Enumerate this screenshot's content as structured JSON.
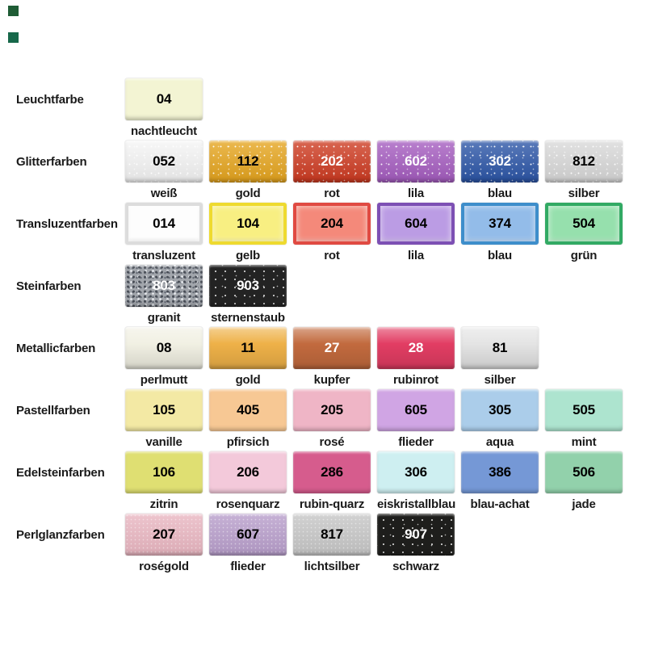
{
  "page": {
    "background": "#ffffff"
  },
  "corner_markers": [
    {
      "color": "#1f5c35"
    },
    {
      "color": "#17684a"
    }
  ],
  "rows": [
    {
      "category": "Leuchtfarbe",
      "swatches": [
        {
          "code": "04",
          "name": "nachtleucht",
          "bg": "#f3f4d3",
          "bg2": "#e2e3b6",
          "txt": "#000000",
          "fx": "solid"
        }
      ]
    },
    {
      "category": "Glitterfarben",
      "swatches": [
        {
          "code": "052",
          "name": "weiß",
          "bg": "#f5f5f5",
          "bg2": "#d9d9d9",
          "txt": "#000000",
          "fx": "glitter"
        },
        {
          "code": "112",
          "name": "gold",
          "bg": "#e6a51d",
          "bg2": "#c98a0e",
          "txt": "#000000",
          "fx": "glitter"
        },
        {
          "code": "202",
          "name": "rot",
          "bg": "#ce3a20",
          "bg2": "#ab2a14",
          "txt": "#ffffff",
          "fx": "glitter"
        },
        {
          "code": "602",
          "name": "lila",
          "bg": "#a55cc0",
          "bg2": "#8a44a6",
          "txt": "#ffffff",
          "fx": "glitter"
        },
        {
          "code": "302",
          "name": "blau",
          "bg": "#2b55a7",
          "bg2": "#1d3f8a",
          "txt": "#ffffff",
          "fx": "glitter"
        },
        {
          "code": "812",
          "name": "silber",
          "bg": "#d9d9d9",
          "bg2": "#bdbdbd",
          "txt": "#000000",
          "fx": "glitter"
        }
      ]
    },
    {
      "category": "Transluzentfarben",
      "swatches": [
        {
          "code": "014",
          "name": "transluzent",
          "bg": "#fdfdfd",
          "bg2": "#dcdcdc",
          "txt": "#000000",
          "fx": "translucent"
        },
        {
          "code": "104",
          "name": "gelb",
          "bg": "#f8ef82",
          "bg2": "#eeda2f",
          "txt": "#000000",
          "fx": "translucent"
        },
        {
          "code": "204",
          "name": "rot",
          "bg": "#f4897a",
          "bg2": "#e04a42",
          "txt": "#000000",
          "fx": "translucent"
        },
        {
          "code": "604",
          "name": "lila",
          "bg": "#bb9ce4",
          "bg2": "#7d50b4",
          "txt": "#000000",
          "fx": "translucent"
        },
        {
          "code": "374",
          "name": "blau",
          "bg": "#93bce9",
          "bg2": "#3e8ecb",
          "txt": "#000000",
          "fx": "translucent"
        },
        {
          "code": "504",
          "name": "grün",
          "bg": "#96e0ad",
          "bg2": "#32aa64",
          "txt": "#000000",
          "fx": "translucent"
        }
      ]
    },
    {
      "category": "Steinfarben",
      "swatches": [
        {
          "code": "803",
          "name": "granit",
          "bg": "#a2a6ac",
          "bg2": "#82868d",
          "txt": "#ffffff",
          "fx": "granite"
        },
        {
          "code": "903",
          "name": "sternenstaub",
          "bg": "#232323",
          "bg2": "#111111",
          "txt": "#ffffff",
          "fx": "stardust"
        }
      ]
    },
    {
      "category": "Metallicfarben",
      "swatches": [
        {
          "code": "08",
          "name": "perlmutt",
          "bg": "#f1f0e3",
          "bg2": "#dcdac6",
          "txt": "#000000",
          "fx": "metallic"
        },
        {
          "code": "11",
          "name": "gold",
          "bg": "#eeb148",
          "bg2": "#dd9722",
          "txt": "#000000",
          "fx": "metallic"
        },
        {
          "code": "27",
          "name": "kupfer",
          "bg": "#c26a3e",
          "bg2": "#a4512c",
          "txt": "#ffffff",
          "fx": "metallic"
        },
        {
          "code": "28",
          "name": "rubinrot",
          "bg": "#e23d63",
          "bg2": "#c22550",
          "txt": "#ffffff",
          "fx": "metallic"
        },
        {
          "code": "81",
          "name": "silber",
          "bg": "#e4e4e4",
          "bg2": "#c7c7c7",
          "txt": "#000000",
          "fx": "metallic"
        }
      ]
    },
    {
      "category": "Pastellfarben",
      "swatches": [
        {
          "code": "105",
          "name": "vanille",
          "bg": "#f3e9a4",
          "bg2": "#e2d173",
          "txt": "#000000",
          "fx": "solid"
        },
        {
          "code": "405",
          "name": "pfirsich",
          "bg": "#f7c894",
          "bg2": "#eda75f",
          "txt": "#000000",
          "fx": "solid"
        },
        {
          "code": "205",
          "name": "rosé",
          "bg": "#efb5c6",
          "bg2": "#e08ea6",
          "txt": "#000000",
          "fx": "solid"
        },
        {
          "code": "605",
          "name": "flieder",
          "bg": "#d0a5e4",
          "bg2": "#b77fd2",
          "txt": "#000000",
          "fx": "solid"
        },
        {
          "code": "305",
          "name": "aqua",
          "bg": "#abcdea",
          "bg2": "#7fb0dc",
          "txt": "#000000",
          "fx": "solid"
        },
        {
          "code": "505",
          "name": "mint",
          "bg": "#ade4cf",
          "bg2": "#7fd0b2",
          "txt": "#000000",
          "fx": "solid"
        }
      ]
    },
    {
      "category": "Edelsteinfarben",
      "swatches": [
        {
          "code": "106",
          "name": "zitrin",
          "bg": "#dfdf72",
          "bg2": "#c6c64a",
          "txt": "#000000",
          "fx": "solid"
        },
        {
          "code": "206",
          "name": "rosenquarz",
          "bg": "#f3c9da",
          "bg2": "#e5a2bf",
          "txt": "#000000",
          "fx": "solid"
        },
        {
          "code": "286",
          "name": "rubin-quarz",
          "bg": "#d65c8d",
          "bg2": "#bc3f72",
          "txt": "#000000",
          "fx": "solid"
        },
        {
          "code": "306",
          "name": "eiskristallblau",
          "bg": "#ceeff1",
          "bg2": "#a5dbe0",
          "txt": "#000000",
          "fx": "solid"
        },
        {
          "code": "386",
          "name": "blau-achat",
          "bg": "#7598d6",
          "bg2": "#5379bd",
          "txt": "#000000",
          "fx": "solid"
        },
        {
          "code": "506",
          "name": "jade",
          "bg": "#92d1ab",
          "bg2": "#6bb98a",
          "txt": "#000000",
          "fx": "solid"
        }
      ]
    },
    {
      "category": "Perlglanzfarben",
      "swatches": [
        {
          "code": "207",
          "name": "roségold",
          "bg": "#e9b6c1",
          "bg2": "#d795a5",
          "txt": "#000000",
          "fx": "pearl"
        },
        {
          "code": "607",
          "name": "flieder",
          "bg": "#b89ecb",
          "bg2": "#9f7fb6",
          "txt": "#000000",
          "fx": "pearl"
        },
        {
          "code": "817",
          "name": "lichtsilber",
          "bg": "#c6c6c6",
          "bg2": "#a8a8a8",
          "txt": "#000000",
          "fx": "pearl"
        },
        {
          "code": "907",
          "name": "schwarz",
          "bg": "#1e1e1c",
          "bg2": "#000000",
          "txt": "#ffffff",
          "fx": "stardust"
        }
      ]
    }
  ]
}
